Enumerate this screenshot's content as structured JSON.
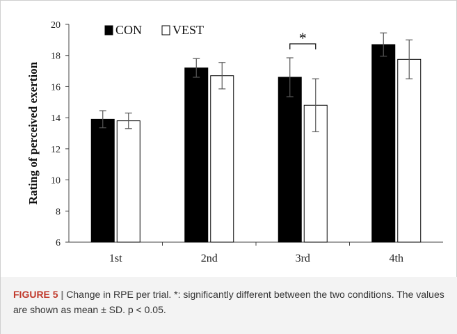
{
  "chart_data": {
    "type": "bar",
    "categories": [
      "1st",
      "2nd",
      "3rd",
      "4th"
    ],
    "series": [
      {
        "name": "CON",
        "values": [
          13.9,
          17.2,
          16.6,
          18.7
        ],
        "errors": [
          0.55,
          0.6,
          1.25,
          0.75
        ],
        "color": "#000000"
      },
      {
        "name": "VEST",
        "values": [
          13.8,
          16.7,
          14.8,
          17.75
        ],
        "errors": [
          0.5,
          0.85,
          1.7,
          1.25
        ],
        "color": "#ffffff"
      }
    ],
    "ylabel": "Rating of perceived exertion",
    "xlabel": "",
    "ylim": [
      6,
      20
    ],
    "yticks": [
      6,
      8,
      10,
      12,
      14,
      16,
      18,
      20
    ],
    "legend": "top-left",
    "grid": false,
    "annotations": [
      {
        "text": "*",
        "category": "3rd"
      }
    ]
  },
  "caption": {
    "label": "FIGURE 5",
    "separator": "|",
    "text": " Change in RPE per trial. *: significantly different between the two conditions. The values are shown as mean ± SD. p < 0.05."
  }
}
